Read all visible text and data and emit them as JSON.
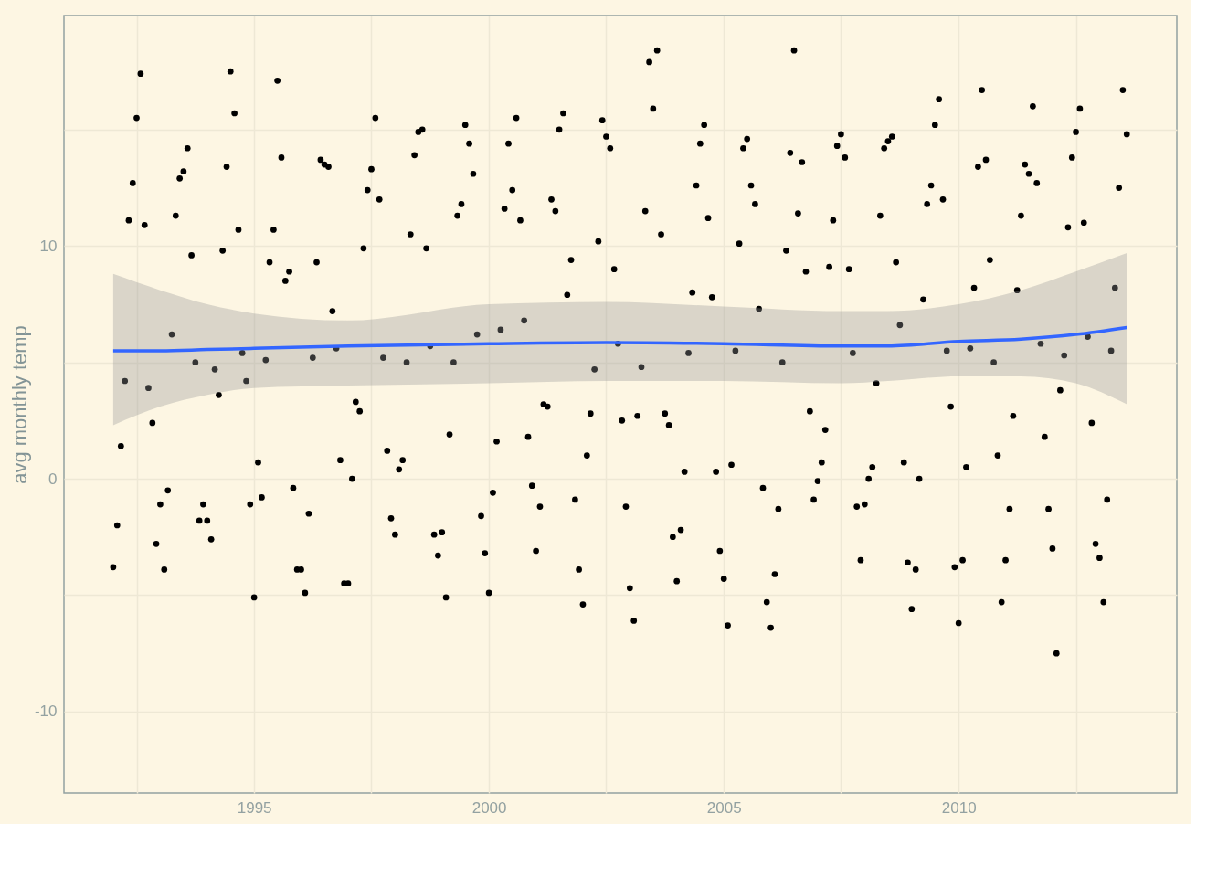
{
  "chart_data": {
    "type": "scatter",
    "ylabel": "avg monthly temp",
    "marker": "circle",
    "grid": true,
    "xlim": [
      "1990-12-14",
      "2014-08-25"
    ],
    "ylim": [
      -13.5,
      19.9
    ],
    "xticks": [
      {
        "value": "1992-07",
        "label": null
      },
      {
        "value": "1995",
        "label": "1995"
      },
      {
        "value": "1997-07",
        "label": null
      },
      {
        "value": "2000",
        "label": "2000"
      },
      {
        "value": "2002-07",
        "label": null
      },
      {
        "value": "2005",
        "label": "2005"
      },
      {
        "value": "2007-07",
        "label": null
      },
      {
        "value": "2010",
        "label": "2010"
      },
      {
        "value": "2012-07",
        "label": null
      }
    ],
    "yticks": [
      -10,
      {
        "value": -5,
        "label": null
      },
      0,
      {
        "value": 5,
        "label": null
      },
      10,
      {
        "value": 15,
        "label": null
      }
    ],
    "series": [
      {
        "color": "#000000",
        "x": [
          "1992-01",
          "1992-02",
          "1992-03",
          "1992-04",
          "1992-05",
          "1992-06",
          "1992-07",
          "1992-08",
          "1992-09",
          "1992-10",
          "1992-11",
          "1992-12",
          "1993-01",
          "1993-02",
          "1993-03",
          "1993-04",
          "1993-05",
          "1993-06",
          "1993-07",
          "1993-08",
          "1993-09",
          "1993-10",
          "1993-11",
          "1993-12",
          "1994-01",
          "1994-02",
          "1994-03",
          "1994-04",
          "1994-05",
          "1994-06",
          "1994-07",
          "1994-08",
          "1994-09",
          "1994-10",
          "1994-11",
          "1994-12",
          "1995-01",
          "1995-02",
          "1995-03",
          "1995-04",
          "1995-05",
          "1995-06",
          "1995-07",
          "1995-08",
          "1995-09",
          "1995-10",
          "1995-11",
          "1995-12",
          "1996-01",
          "1996-02",
          "1996-03",
          "1996-04",
          "1996-05",
          "1996-06",
          "1996-07",
          "1996-08",
          "1996-09",
          "1996-10",
          "1996-11",
          "1996-12",
          "1997-01",
          "1997-02",
          "1997-03",
          "1997-04",
          "1997-05",
          "1997-06",
          "1997-07",
          "1997-08",
          "1997-09",
          "1997-10",
          "1997-11",
          "1997-12",
          "1998-01",
          "1998-02",
          "1998-03",
          "1998-04",
          "1998-05",
          "1998-06",
          "1998-07",
          "1998-08",
          "1998-09",
          "1998-10",
          "1998-11",
          "1998-12",
          "1999-01",
          "1999-02",
          "1999-03",
          "1999-04",
          "1999-05",
          "1999-06",
          "1999-07",
          "1999-08",
          "1999-09",
          "1999-10",
          "1999-11",
          "1999-12",
          "2000-01",
          "2000-02",
          "2000-03",
          "2000-04",
          "2000-05",
          "2000-06",
          "2000-07",
          "2000-08",
          "2000-09",
          "2000-10",
          "2000-11",
          "2000-12",
          "2001-01",
          "2001-02",
          "2001-03",
          "2001-04",
          "2001-05",
          "2001-06",
          "2001-07",
          "2001-08",
          "2001-09",
          "2001-10",
          "2001-11",
          "2001-12",
          "2002-01",
          "2002-02",
          "2002-03",
          "2002-04",
          "2002-05",
          "2002-06",
          "2002-07",
          "2002-08",
          "2002-09",
          "2002-10",
          "2002-11",
          "2002-12",
          "2003-01",
          "2003-02",
          "2003-03",
          "2003-04",
          "2003-05",
          "2003-06",
          "2003-07",
          "2003-08",
          "2003-09",
          "2003-10",
          "2003-11",
          "2003-12",
          "2004-01",
          "2004-02",
          "2004-03",
          "2004-04",
          "2004-05",
          "2004-06",
          "2004-07",
          "2004-08",
          "2004-09",
          "2004-10",
          "2004-11",
          "2004-12",
          "2005-01",
          "2005-02",
          "2005-03",
          "2005-04",
          "2005-05",
          "2005-06",
          "2005-07",
          "2005-08",
          "2005-09",
          "2005-10",
          "2005-11",
          "2005-12",
          "2006-01",
          "2006-02",
          "2006-03",
          "2006-04",
          "2006-05",
          "2006-06",
          "2006-07",
          "2006-08",
          "2006-09",
          "2006-10",
          "2006-11",
          "2006-12",
          "2007-01",
          "2007-02",
          "2007-03",
          "2007-04",
          "2007-05",
          "2007-06",
          "2007-07",
          "2007-08",
          "2007-09",
          "2007-10",
          "2007-11",
          "2007-12",
          "2008-01",
          "2008-02",
          "2008-03",
          "2008-04",
          "2008-05",
          "2008-06",
          "2008-07",
          "2008-08",
          "2008-09",
          "2008-10",
          "2008-11",
          "2008-12",
          "2009-01",
          "2009-02",
          "2009-03",
          "2009-04",
          "2009-05",
          "2009-06",
          "2009-07",
          "2009-08",
          "2009-09",
          "2009-10",
          "2009-11",
          "2009-12",
          "2010-01",
          "2010-02",
          "2010-03",
          "2010-04",
          "2010-05",
          "2010-06",
          "2010-07",
          "2010-08",
          "2010-09",
          "2010-10",
          "2010-11",
          "2010-12",
          "2011-01",
          "2011-02",
          "2011-03",
          "2011-04",
          "2011-05",
          "2011-06",
          "2011-07",
          "2011-08",
          "2011-09",
          "2011-10",
          "2011-11",
          "2011-12",
          "2012-01",
          "2012-02",
          "2012-03",
          "2012-04",
          "2012-05",
          "2012-06",
          "2012-07",
          "2012-08",
          "2012-09",
          "2012-10",
          "2012-11",
          "2012-12",
          "2013-01",
          "2013-02",
          "2013-03",
          "2013-04",
          "2013-05",
          "2013-06",
          "2013-07",
          "2013-08"
        ],
        "values": [
          -3.8,
          -2.0,
          1.4,
          4.2,
          11.1,
          12.7,
          15.5,
          17.4,
          10.9,
          3.9,
          2.4,
          -2.8,
          -1.1,
          -3.9,
          -0.5,
          6.2,
          11.3,
          12.9,
          13.2,
          14.2,
          9.6,
          5.0,
          -1.8,
          -1.1,
          -1.8,
          -2.6,
          4.7,
          3.6,
          9.8,
          13.4,
          17.5,
          15.7,
          10.7,
          5.4,
          4.2,
          -1.1,
          -5.1,
          0.7,
          -0.8,
          5.1,
          9.3,
          10.7,
          17.1,
          13.8,
          8.5,
          8.9,
          -0.4,
          -3.9,
          -3.9,
          -4.9,
          -1.5,
          5.2,
          9.3,
          13.7,
          13.5,
          13.4,
          7.2,
          5.6,
          0.8,
          -4.5,
          -4.5,
          0.0,
          3.3,
          2.9,
          9.9,
          12.4,
          13.3,
          15.5,
          12.0,
          5.2,
          1.2,
          -1.7,
          -2.4,
          0.4,
          0.8,
          5.0,
          10.5,
          13.9,
          14.9,
          15.0,
          9.9,
          5.7,
          -2.4,
          -3.3,
          -2.3,
          -5.1,
          1.9,
          5.0,
          11.3,
          11.8,
          15.2,
          14.4,
          13.1,
          6.2,
          -1.6,
          -3.2,
          -4.9,
          -0.6,
          1.6,
          6.4,
          11.6,
          14.4,
          12.4,
          15.5,
          11.1,
          6.8,
          1.8,
          -0.3,
          -3.1,
          -1.2,
          3.2,
          3.1,
          12.0,
          11.5,
          15.0,
          15.7,
          7.9,
          9.4,
          -0.9,
          -3.9,
          -5.4,
          1.0,
          2.8,
          4.7,
          10.2,
          15.4,
          14.7,
          14.2,
          9.0,
          5.8,
          2.5,
          -1.2,
          -4.7,
          -6.1,
          2.7,
          4.8,
          11.5,
          17.9,
          15.9,
          18.4,
          10.5,
          2.8,
          2.3,
          -2.5,
          -4.4,
          -2.2,
          0.3,
          5.4,
          8.0,
          12.6,
          14.4,
          15.2,
          11.2,
          7.8,
          0.3,
          -3.1,
          -4.3,
          -6.3,
          0.6,
          5.5,
          10.1,
          14.2,
          14.6,
          12.6,
          11.8,
          7.3,
          -0.4,
          -5.3,
          -6.4,
          -4.1,
          -1.3,
          5.0,
          9.8,
          14.0,
          18.4,
          11.4,
          13.6,
          8.9,
          2.9,
          -0.9,
          -0.1,
          0.7,
          2.1,
          9.1,
          11.1,
          14.3,
          14.8,
          13.8,
          9.0,
          5.4,
          -1.2,
          -3.5,
          -1.1,
          0.0,
          0.5,
          4.1,
          11.3,
          14.2,
          14.5,
          14.7,
          9.3,
          6.6,
          0.7,
          -3.6,
          -5.6,
          -3.9,
          0.0,
          7.7,
          11.8,
          12.6,
          15.2,
          16.3,
          12.0,
          5.5,
          3.1,
          -3.8,
          -6.2,
          -3.5,
          0.5,
          5.6,
          8.2,
          13.4,
          16.7,
          13.7,
          9.4,
          5.0,
          1.0,
          -5.3,
          -3.5,
          -1.3,
          2.7,
          8.1,
          11.3,
          13.5,
          13.1,
          16.0,
          12.7,
          5.8,
          1.8,
          -1.3,
          -3.0,
          -7.5,
          3.8,
          5.3,
          10.8,
          13.8,
          14.9,
          15.9,
          11.0,
          6.1,
          2.4,
          -2.8,
          -3.4,
          -5.3,
          -0.9,
          5.5,
          8.2,
          12.5,
          16.7,
          14.8
        ]
      },
      {
        "type": "line",
        "color": "#3366ff",
        "marker": "none",
        "x": [
          "1992-01",
          "1993-01",
          "1994-01",
          "1995-01",
          "1997-01",
          "2000-01",
          "2002-07",
          "2005-01",
          "2007-07",
          "2008-07",
          "2010-01",
          "2011-05",
          "2012-07",
          "2013-08"
        ],
        "values": [
          5.5,
          5.5,
          5.55,
          5.6,
          5.7,
          5.8,
          5.85,
          5.8,
          5.7,
          5.7,
          5.9,
          6.0,
          6.2,
          6.5
        ],
        "lower": [
          2.3,
          3.1,
          3.6,
          3.9,
          4.0,
          4.1,
          4.2,
          4.2,
          4.1,
          4.2,
          4.4,
          4.4,
          4.1,
          3.2
        ],
        "upper": [
          8.8,
          8.1,
          7.5,
          7.1,
          6.8,
          7.5,
          7.6,
          7.4,
          7.2,
          7.2,
          7.5,
          8.1,
          8.9,
          9.7
        ]
      }
    ]
  }
}
